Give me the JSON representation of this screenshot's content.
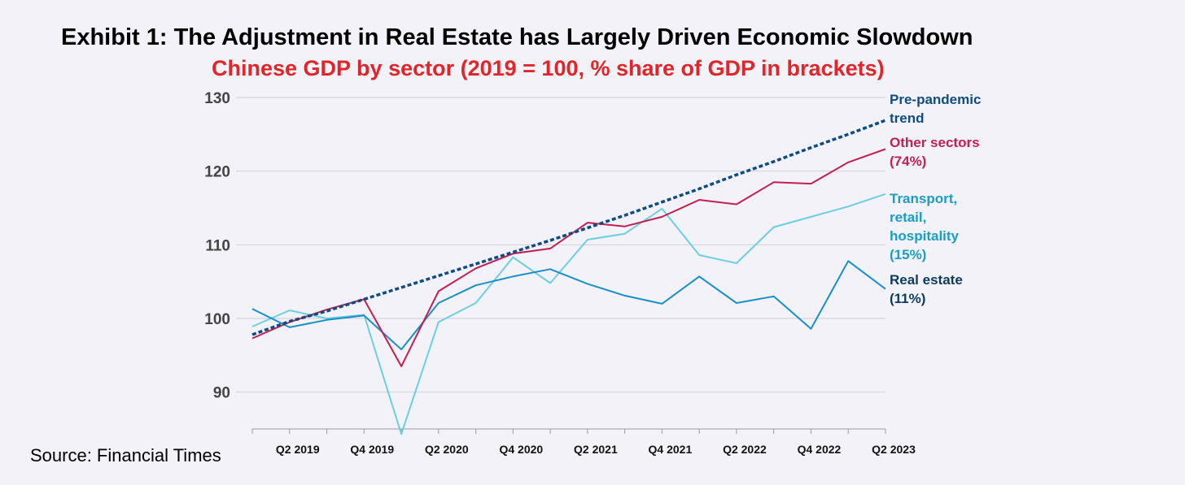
{
  "title": "Exhibit 1: The Adjustment in Real Estate has Largely Driven Economic Slowdown",
  "subtitle": "Chinese GDP by sector (2019 = 100, % share of GDP in brackets)",
  "source": "Source: Financial Times",
  "chart_data": {
    "type": "line",
    "ylim": [
      85,
      130
    ],
    "yticks": [
      90,
      100,
      110,
      120,
      130
    ],
    "grid": true,
    "x": [
      "Q1 2019",
      "Q2 2019",
      "Q3 2019",
      "Q4 2019",
      "Q1 2020",
      "Q2 2020",
      "Q3 2020",
      "Q4 2020",
      "Q1 2021",
      "Q2 2021",
      "Q3 2021",
      "Q4 2021",
      "Q1 2022",
      "Q2 2022",
      "Q3 2022",
      "Q4 2022",
      "Q1 2023",
      "Q2 2023"
    ],
    "xtick_labels": [
      "Q2 2019",
      "Q4 2019",
      "Q2 2020",
      "Q4 2020",
      "Q2 2021",
      "Q4 2021",
      "Q2 2022",
      "Q4 2022",
      "Q2 2023"
    ],
    "series": [
      {
        "name": "Pre-pandemic trend",
        "label_lines": [
          "Pre-pandemic",
          "trend"
        ],
        "color": "#0f4c81",
        "style": "dashed",
        "values": [
          97.8,
          99.6,
          101.0,
          102.6,
          104.2,
          105.8,
          107.4,
          109.0,
          110.6,
          112.3,
          114.0,
          115.8,
          117.6,
          119.5,
          121.3,
          123.2,
          125.0,
          126.9
        ]
      },
      {
        "name": "Other sectors (74%)",
        "label_lines": [
          "Other sectors",
          "(74%)"
        ],
        "color": "#c41e52",
        "style": "solid",
        "values": [
          97.3,
          99.5,
          101.2,
          102.6,
          93.5,
          103.7,
          106.8,
          108.8,
          109.5,
          113.0,
          112.5,
          113.8,
          116.1,
          115.5,
          118.5,
          118.3,
          121.2,
          123.0
        ]
      },
      {
        "name": "Transport, retail, hospitality (15%)",
        "label_lines": [
          "Transport,",
          "retail,",
          "hospitality",
          "(15%)"
        ],
        "color": "#6ccfe0",
        "label_color": "#1a9ec2",
        "style": "solid",
        "values": [
          98.9,
          101.1,
          100.0,
          100.5,
          84.3,
          99.5,
          102.1,
          108.3,
          104.8,
          110.7,
          111.5,
          114.9,
          108.6,
          107.5,
          112.4,
          113.8,
          115.2,
          116.9
        ]
      },
      {
        "name": "Real estate (11%)",
        "label_lines": [
          "Real estate",
          "(11%)"
        ],
        "color": "#1a8fc6",
        "label_color": "#0d3b5e",
        "style": "solid",
        "values": [
          101.3,
          98.8,
          99.8,
          100.4,
          95.8,
          102.1,
          104.5,
          105.7,
          106.7,
          104.7,
          103.1,
          102.0,
          105.7,
          102.1,
          103.0,
          98.6,
          107.8,
          104.0
        ]
      }
    ]
  }
}
